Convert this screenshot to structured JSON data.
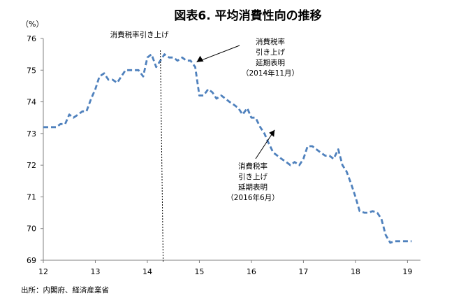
{
  "chart_data": {
    "type": "line",
    "title": "図表6. 平均消費性向の推移",
    "ylabel": "（%）",
    "xlabel": "",
    "source": "出所：内閣府、経済産業省",
    "ylim": [
      69,
      76
    ],
    "xlim": [
      12,
      19.25
    ],
    "yticks": [
      69,
      70,
      71,
      72,
      73,
      74,
      75,
      76
    ],
    "xticks": [
      12,
      13,
      14,
      15,
      16,
      17,
      18,
      19
    ],
    "grid": false,
    "series": [
      {
        "color": "#4f81bd",
        "x": [
          12.0,
          12.08,
          12.17,
          12.25,
          12.33,
          12.42,
          12.5,
          12.58,
          12.67,
          12.75,
          12.83,
          12.92,
          13.0,
          13.08,
          13.17,
          13.25,
          13.33,
          13.42,
          13.5,
          13.58,
          13.67,
          13.75,
          13.83,
          13.92,
          14.0,
          14.08,
          14.17,
          14.25,
          14.33,
          14.42,
          14.5,
          14.58,
          14.67,
          14.75,
          14.83,
          14.92,
          15.0,
          15.08,
          15.17,
          15.25,
          15.33,
          15.42,
          15.5,
          15.58,
          15.67,
          15.75,
          15.83,
          15.92,
          16.0,
          16.08,
          16.17,
          16.25,
          16.33,
          16.42,
          16.5,
          16.58,
          16.67,
          16.75,
          16.83,
          16.92,
          17.0,
          17.08,
          17.17,
          17.25,
          17.33,
          17.42,
          17.5,
          17.58,
          17.67,
          17.75,
          17.83,
          17.92,
          18.0,
          18.08,
          18.17,
          18.25,
          18.33,
          18.42,
          18.5,
          18.58,
          18.67,
          18.75,
          18.83,
          18.92,
          19.0,
          19.08
        ],
        "y": [
          73.2,
          73.2,
          73.2,
          73.2,
          73.3,
          73.3,
          73.6,
          73.5,
          73.6,
          73.7,
          73.7,
          74.1,
          74.4,
          74.8,
          74.9,
          74.7,
          74.7,
          74.6,
          74.8,
          75.0,
          75.0,
          75.0,
          75.0,
          74.8,
          75.4,
          75.5,
          75.1,
          75.3,
          75.5,
          75.4,
          75.4,
          75.3,
          75.4,
          75.3,
          75.3,
          75.1,
          74.2,
          74.2,
          74.4,
          74.3,
          74.1,
          74.2,
          74.1,
          74.0,
          73.9,
          73.8,
          73.6,
          73.8,
          73.5,
          73.5,
          73.2,
          73.0,
          72.7,
          72.4,
          72.3,
          72.2,
          72.1,
          72.0,
          72.1,
          72.0,
          72.2,
          72.6,
          72.6,
          72.5,
          72.4,
          72.3,
          72.3,
          72.2,
          72.5,
          72.0,
          71.8,
          71.4,
          71.0,
          70.55,
          70.5,
          70.5,
          70.55,
          70.5,
          70.3,
          69.8,
          69.55,
          69.6,
          69.6,
          69.6,
          69.6,
          69.6
        ]
      }
    ],
    "annotations": [
      {
        "text_lines": [
          "消費税率引き上げ"
        ],
        "x": 14.25
      },
      {
        "text_lines": [
          "消費税率",
          "引き上げ",
          "延期表明",
          "（2014年11月）"
        ],
        "x": 14.92
      },
      {
        "text_lines": [
          "消費税率",
          "引き上げ",
          "延期表明",
          "（2016年6月）"
        ],
        "x": 16.42
      }
    ]
  }
}
